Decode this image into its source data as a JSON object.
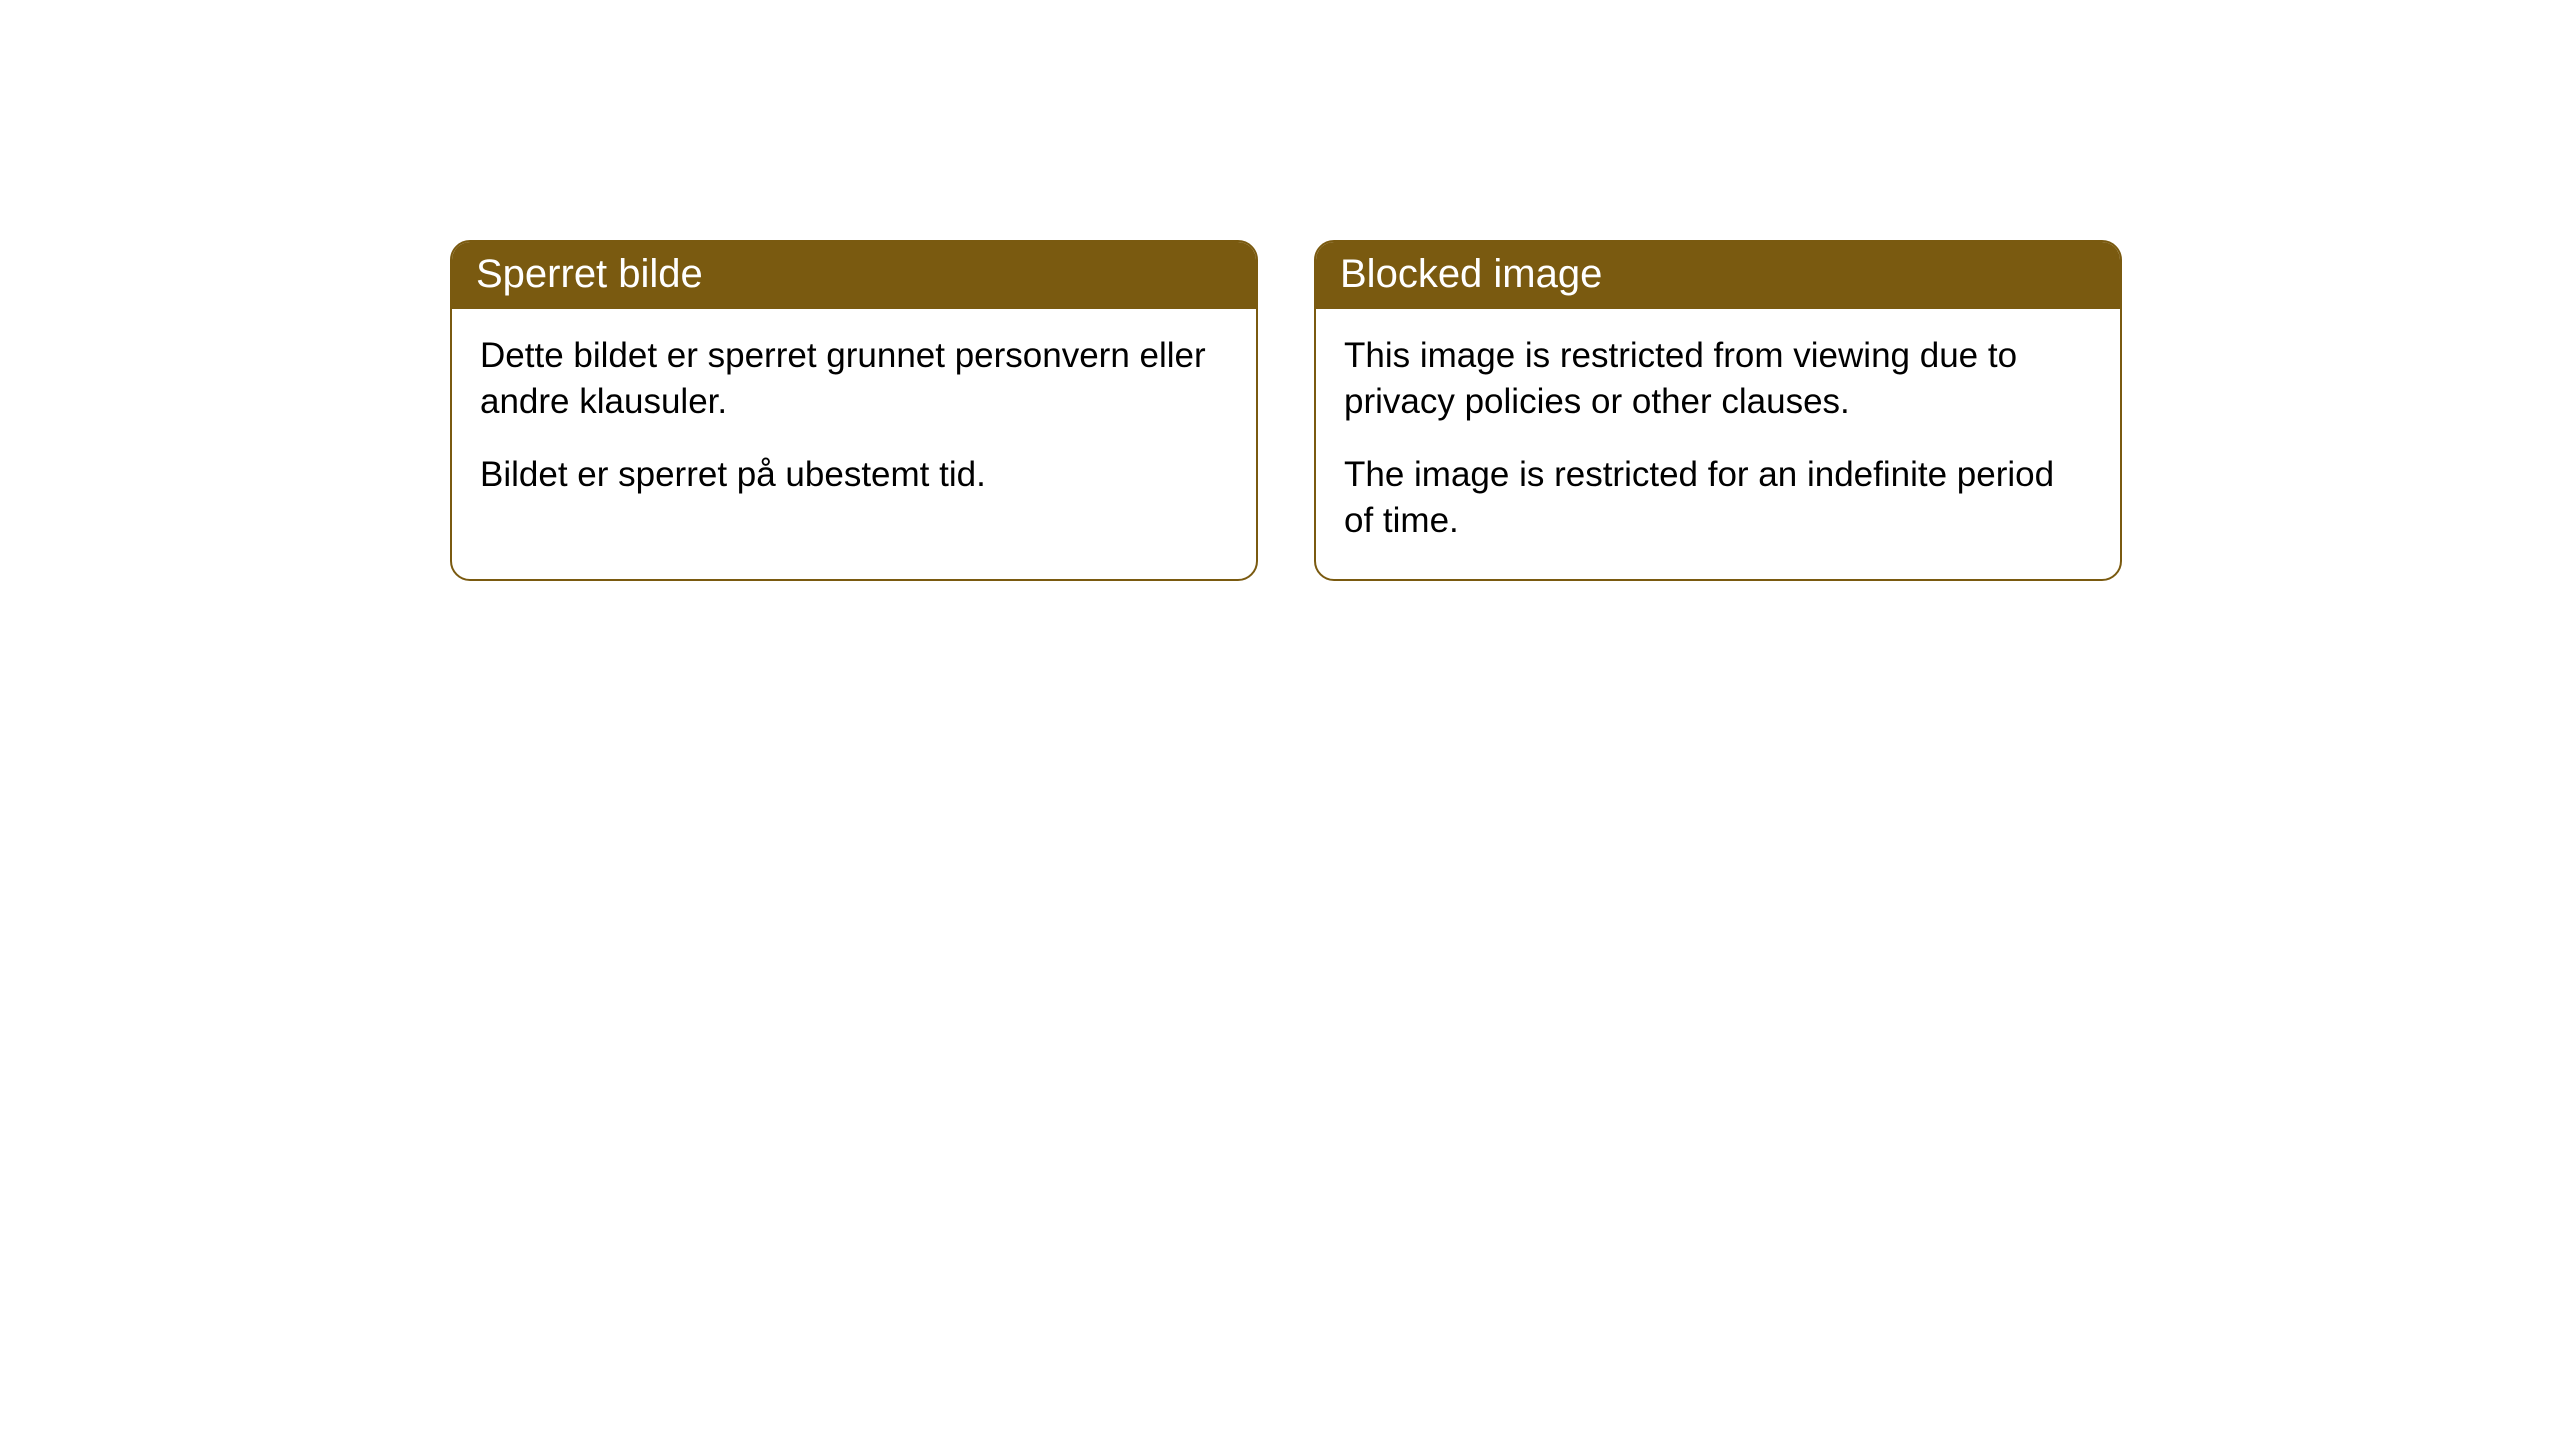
{
  "cards": [
    {
      "title": "Sperret bilde",
      "paragraph1": "Dette bildet er sperret grunnet personvern eller andre klausuler.",
      "paragraph2": "Bildet er sperret på ubestemt tid."
    },
    {
      "title": "Blocked image",
      "paragraph1": "This image is restricted from viewing due to privacy policies or other clauses.",
      "paragraph2": "The image is restricted for an indefinite period of time."
    }
  ],
  "styling": {
    "header_background_color": "#7a5a10",
    "header_text_color": "#ffffff",
    "card_border_color": "#7a5a10",
    "card_background_color": "#ffffff",
    "body_text_color": "#000000",
    "header_fontsize": 40,
    "body_fontsize": 35,
    "border_radius": 20,
    "border_width": 2
  }
}
